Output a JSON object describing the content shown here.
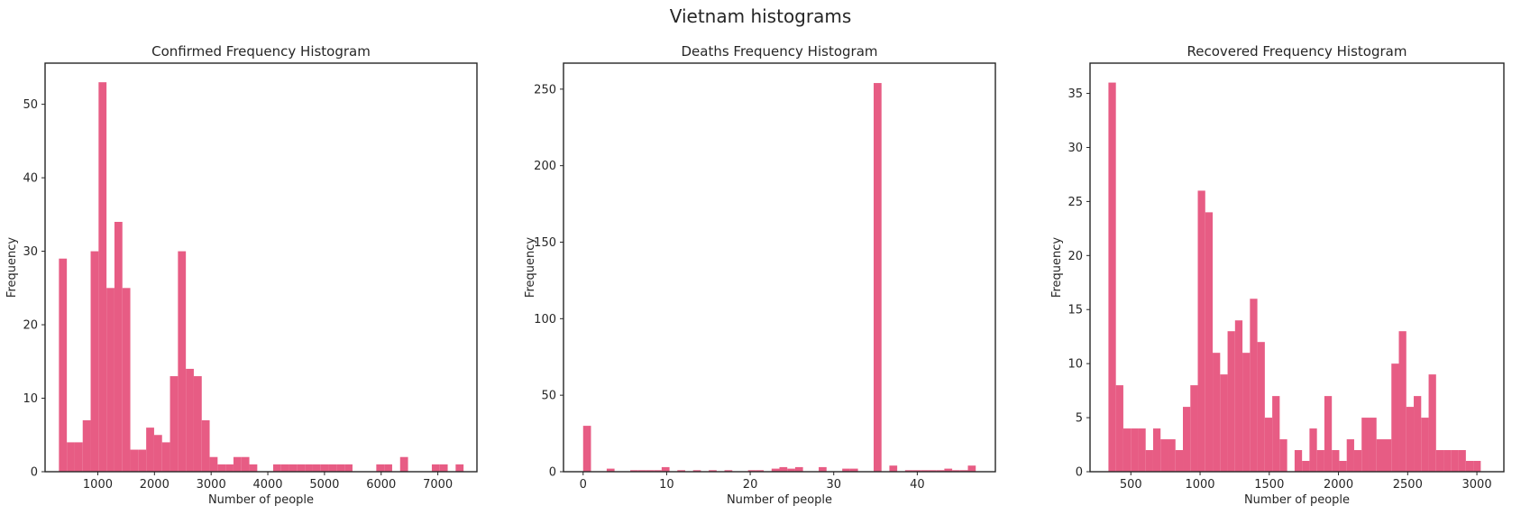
{
  "figure": {
    "title": "Vietnam histograms"
  },
  "style": {
    "bar_color": "#e75c84",
    "frame_color": "#262626",
    "text_color": "#262626"
  },
  "chart_data": [
    {
      "type": "histogram",
      "title": "Confirmed Frequency Histogram",
      "xlabel": "Number of people",
      "ylabel": "Frequency",
      "xlim": [
        70,
        7690
      ],
      "ylim": [
        0,
        55.6
      ],
      "xticks": [
        1000,
        2000,
        3000,
        4000,
        5000,
        6000,
        7000
      ],
      "yticks": [
        0,
        10,
        20,
        30,
        40,
        50
      ],
      "bin_edges": [
        314,
        454,
        594,
        734,
        874,
        1014,
        1154,
        1294,
        1434,
        1574,
        1714,
        1854,
        1994,
        2134,
        2274,
        2414,
        2554,
        2694,
        2834,
        2974,
        3114,
        3254,
        3394,
        3534,
        3674,
        3814,
        3954,
        4094,
        4234,
        4374,
        4514,
        4654,
        4794,
        4934,
        5074,
        5214,
        5354,
        5494,
        5634,
        5774,
        5914,
        6054,
        6194,
        6334,
        6474,
        6614,
        6754,
        6894,
        7034,
        7174,
        7314,
        7454
      ],
      "counts": [
        29,
        4,
        4,
        7,
        30,
        53,
        25,
        34,
        25,
        3,
        3,
        6,
        5,
        4,
        13,
        30,
        14,
        13,
        7,
        2,
        1,
        1,
        2,
        2,
        1,
        0,
        0,
        1,
        1,
        1,
        1,
        1,
        1,
        1,
        1,
        1,
        1,
        0,
        0,
        0,
        1,
        1,
        0,
        2,
        0,
        0,
        0,
        1,
        1,
        0,
        1
      ]
    },
    {
      "type": "histogram",
      "title": "Deaths Frequency Histogram",
      "xlabel": "Number of people",
      "ylabel": "Frequency",
      "xlim": [
        -2.35,
        49.35
      ],
      "ylim": [
        0,
        267
      ],
      "xticks": [
        0,
        10,
        20,
        30,
        40
      ],
      "yticks": [
        0,
        50,
        100,
        150,
        200,
        250
      ],
      "bin_edges": [
        0.0,
        0.94,
        1.88,
        2.82,
        3.76,
        4.7,
        5.64,
        6.58,
        7.52,
        8.46,
        9.4,
        10.34,
        11.28,
        12.22,
        13.16,
        14.1,
        15.04,
        15.98,
        16.92,
        17.86,
        18.8,
        19.74,
        20.68,
        21.62,
        22.56,
        23.5,
        24.44,
        25.38,
        26.32,
        27.26,
        28.2,
        29.14,
        30.08,
        31.02,
        31.96,
        32.9,
        33.84,
        34.78,
        35.72,
        36.66,
        37.6,
        38.54,
        39.48,
        40.42,
        41.36,
        42.3,
        43.24,
        44.18,
        45.12,
        46.06,
        47.0
      ],
      "counts": [
        30,
        0,
        0,
        2,
        0,
        0,
        1,
        1,
        1,
        1,
        3,
        0,
        1,
        0,
        1,
        0,
        1,
        0,
        1,
        0,
        0,
        1,
        1,
        0,
        2,
        3,
        2,
        3,
        0,
        0,
        3,
        0,
        0,
        2,
        2,
        0,
        0,
        254,
        0,
        4,
        0,
        1,
        1,
        1,
        1,
        1,
        2,
        1,
        1,
        4
      ]
    },
    {
      "type": "histogram",
      "title": "Recovered Frequency Histogram",
      "xlabel": "Number of people",
      "ylabel": "Frequency",
      "xlim": [
        205,
        3195
      ],
      "ylim": [
        0,
        37.8
      ],
      "xticks": [
        500,
        1000,
        1500,
        2000,
        2500,
        3000
      ],
      "yticks": [
        0,
        5,
        10,
        15,
        20,
        25,
        30,
        35
      ],
      "bin_edges": [
        338,
        391.8,
        445.6,
        499.4,
        553.2,
        607,
        660.8,
        714.6,
        768.4,
        822.2,
        876,
        929.8,
        983.6,
        1037.4,
        1091.2,
        1145,
        1198.8,
        1252.6,
        1306.4,
        1360.2,
        1414,
        1467.8,
        1521.6,
        1575.4,
        1629.2,
        1683,
        1736.8,
        1790.6,
        1844.4,
        1898.2,
        1952,
        2005.8,
        2059.6,
        2113.4,
        2167.2,
        2221,
        2274.8,
        2328.6,
        2382.4,
        2436.2,
        2490,
        2543.8,
        2597.6,
        2651.4,
        2705.2,
        2759,
        2812.8,
        2866.6,
        2920.4,
        2974.2,
        3028
      ],
      "counts": [
        36,
        8,
        4,
        4,
        4,
        2,
        4,
        3,
        3,
        2,
        6,
        8,
        26,
        24,
        11,
        9,
        13,
        14,
        11,
        16,
        12,
        5,
        7,
        3,
        0,
        2,
        1,
        4,
        2,
        7,
        2,
        1,
        3,
        2,
        5,
        5,
        3,
        3,
        10,
        13,
        6,
        7,
        5,
        9,
        2,
        2,
        2,
        2,
        1,
        1
      ]
    }
  ]
}
